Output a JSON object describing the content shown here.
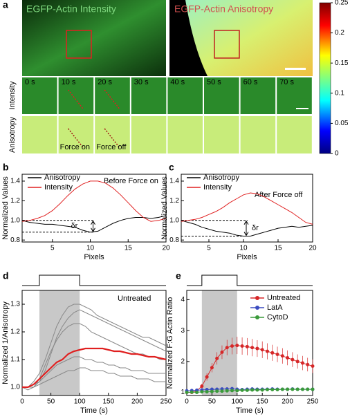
{
  "panels": [
    "a",
    "b",
    "c",
    "d",
    "e"
  ],
  "figure_a": {
    "intensity_title": "EGFP-Actin Intensity",
    "anisotropy_title": "EGFP-Actin Anisotropy",
    "row_labels": [
      "Intensity",
      "Anisotropy"
    ],
    "times": [
      "0 s",
      "10 s",
      "20 s",
      "30 s",
      "40 s",
      "50 s",
      "60 s",
      "70 s"
    ],
    "force_labels": [
      "Force on",
      "Force off"
    ]
  },
  "colorbar": {
    "lim": [
      0,
      0.25
    ],
    "ticks": [
      0.25,
      0.2,
      0.15,
      0.1,
      0.05,
      0
    ]
  },
  "chart_data": [
    {
      "type": "line",
      "xlabel": "Pixels",
      "ylabel": "Normalized Values",
      "annotation": "Before Force on",
      "delta_label": "δr",
      "x": [
        1,
        2,
        3,
        4,
        5,
        6,
        7,
        8,
        9,
        10,
        11,
        12,
        13,
        14,
        15,
        16,
        17,
        18,
        19,
        20
      ],
      "xlim": [
        1,
        20
      ],
      "xticks": [
        5,
        10,
        15,
        20
      ],
      "ylim": [
        0.78,
        1.47
      ],
      "yticks": [
        0.8,
        {
          "value": 1,
          "label": "1.0"
        },
        1.2,
        1.4
      ],
      "series": [
        {
          "name": "Anisotropy",
          "color": "#000000",
          "values": [
            1.0,
            0.98,
            0.97,
            0.96,
            0.96,
            0.95,
            0.94,
            0.93,
            0.9,
            0.88,
            0.89,
            0.93,
            0.97,
            1.0,
            1.02,
            1.03,
            1.03,
            1.02,
            1.03,
            1.05
          ]
        },
        {
          "name": "Intensity",
          "color": "#e02020",
          "values": [
            0.99,
            1.0,
            1.02,
            1.05,
            1.1,
            1.17,
            1.25,
            1.32,
            1.37,
            1.4,
            1.4,
            1.38,
            1.33,
            1.26,
            1.18,
            1.1,
            1.03,
            0.99,
            1.0,
            1.02
          ]
        }
      ]
    },
    {
      "type": "line",
      "xlabel": "Pixels",
      "ylabel": "Normalized Values",
      "annotation": "After Force off",
      "delta_label": "δr",
      "x": [
        1,
        2,
        3,
        4,
        5,
        6,
        7,
        8,
        9,
        10,
        11,
        12,
        13,
        14,
        15,
        16,
        17,
        18,
        19,
        20
      ],
      "xlim": [
        1,
        20
      ],
      "xticks": [
        5,
        10,
        15,
        20
      ],
      "ylim": [
        0.78,
        1.47
      ],
      "yticks": [
        0.8,
        {
          "value": 1,
          "label": "1.0"
        },
        1.2,
        1.4
      ],
      "series": [
        {
          "name": "Anisotropy",
          "color": "#000000",
          "values": [
            1.0,
            0.98,
            0.96,
            0.93,
            0.91,
            0.89,
            0.88,
            0.87,
            0.85,
            0.84,
            0.84,
            0.86,
            0.88,
            0.9,
            0.92,
            0.93,
            0.94,
            0.93,
            0.94,
            0.95
          ]
        },
        {
          "name": "Intensity",
          "color": "#e02020",
          "values": [
            0.99,
            1.0,
            1.01,
            1.03,
            1.06,
            1.09,
            1.13,
            1.18,
            1.22,
            1.26,
            1.28,
            1.27,
            1.24,
            1.2,
            1.16,
            1.12,
            1.08,
            1.03,
            0.98,
            0.96
          ]
        }
      ]
    },
    {
      "type": "line",
      "xlabel": "Time (s)",
      "ylabel": "Normalized 1/Anisotropy",
      "annotation": "Untreated",
      "shaded": [
        30,
        100
      ],
      "x": [
        0,
        10,
        20,
        30,
        40,
        50,
        60,
        70,
        80,
        90,
        100,
        110,
        120,
        130,
        140,
        150,
        160,
        170,
        180,
        190,
        200,
        210,
        220,
        230,
        240,
        250
      ],
      "xlim": [
        0,
        250
      ],
      "xticks": [
        0,
        50,
        100,
        150,
        200,
        250
      ],
      "ylim": [
        0.97,
        1.35
      ],
      "yticks": [
        {
          "value": 1,
          "label": "1.0"
        },
        1.1,
        1.2,
        1.3
      ],
      "series": [
        {
          "color": "#888888",
          "values": [
            1,
            1,
            1.0,
            1.02,
            1.06,
            1.12,
            1.18,
            1.22,
            1.25,
            1.27,
            1.28,
            1.27,
            1.26,
            1.25,
            1.24,
            1.23,
            1.22,
            1.21,
            1.2,
            1.19,
            1.18,
            1.17,
            1.16,
            1.15,
            1.14,
            1.13
          ]
        },
        {
          "color": "#888888",
          "values": [
            1,
            1,
            1.01,
            1.02,
            1.04,
            1.06,
            1.08,
            1.09,
            1.1,
            1.11,
            1.11,
            1.1,
            1.1,
            1.09,
            1.09,
            1.08,
            1.08,
            1.07,
            1.07,
            1.06,
            1.06,
            1.06,
            1.05,
            1.05,
            1.05,
            1.05
          ]
        },
        {
          "color": "#888888",
          "values": [
            1,
            1,
            1.0,
            1.03,
            1.08,
            1.13,
            1.17,
            1.2,
            1.22,
            1.23,
            1.23,
            1.22,
            1.2,
            1.19,
            1.18,
            1.17,
            1.16,
            1.15,
            1.14,
            1.13,
            1.12,
            1.12,
            1.11,
            1.11,
            1.1,
            1.1
          ]
        },
        {
          "color": "#888888",
          "values": [
            1,
            0.99,
            1.0,
            1.01,
            1.02,
            1.03,
            1.04,
            1.05,
            1.06,
            1.06,
            1.07,
            1.07,
            1.06,
            1.06,
            1.06,
            1.05,
            1.05,
            1.04,
            1.04,
            1.04,
            1.03,
            1.03,
            1.03,
            1.02,
            1.02,
            1.02
          ]
        },
        {
          "color": "#888888",
          "values": [
            1,
            1,
            1.02,
            1.05,
            1.1,
            1.16,
            1.22,
            1.26,
            1.29,
            1.3,
            1.3,
            1.29,
            1.28,
            1.26,
            1.25,
            1.24,
            1.23,
            1.22,
            1.21,
            1.2,
            1.19,
            1.18,
            1.18,
            1.17,
            1.16,
            1.15
          ]
        },
        {
          "color": "#e02020",
          "values": [
            1.0,
            1.0,
            1.01,
            1.03,
            1.05,
            1.07,
            1.09,
            1.1,
            1.12,
            1.13,
            1.135,
            1.14,
            1.14,
            1.14,
            1.14,
            1.135,
            1.13,
            1.13,
            1.125,
            1.12,
            1.12,
            1.115,
            1.11,
            1.11,
            1.105,
            1.1
          ]
        }
      ]
    },
    {
      "type": "line",
      "xlabel": "Time (s)",
      "ylabel": "Normalized F:G Actin Ratio",
      "shaded": [
        30,
        100
      ],
      "x": [
        0,
        10,
        20,
        30,
        40,
        50,
        60,
        70,
        80,
        90,
        100,
        110,
        120,
        130,
        140,
        150,
        160,
        170,
        180,
        190,
        200,
        210,
        220,
        230,
        240,
        250
      ],
      "xlim": [
        0,
        250
      ],
      "xticks": [
        0,
        50,
        100,
        150,
        200,
        250
      ],
      "ylim": [
        0.9,
        4.3
      ],
      "yticks": [
        1,
        2,
        3,
        4
      ],
      "series": [
        {
          "name": "Untreated",
          "color": "#d62728",
          "values": [
            1,
            1,
            1.05,
            1.2,
            1.5,
            1.8,
            2.1,
            2.3,
            2.45,
            2.5,
            2.52,
            2.5,
            2.48,
            2.45,
            2.42,
            2.38,
            2.33,
            2.28,
            2.23,
            2.18,
            2.12,
            2.06,
            2.0,
            1.95,
            1.9,
            1.85
          ],
          "errors": [
            0.02,
            0.03,
            0.05,
            0.08,
            0.12,
            0.15,
            0.2,
            0.22,
            0.25,
            0.27,
            0.28,
            0.28,
            0.28,
            0.28,
            0.27,
            0.27,
            0.26,
            0.26,
            0.25,
            0.25,
            0.24,
            0.24,
            0.23,
            0.23,
            0.22,
            0.22
          ]
        },
        {
          "name": "LatA",
          "color": "#3b4cc0",
          "values": [
            1.05,
            1.06,
            1.07,
            1.08,
            1.09,
            1.1,
            1.1,
            1.11,
            1.11,
            1.12,
            1.1,
            1.09,
            1.1,
            1.11,
            1.1,
            1.1,
            1.1,
            1.11,
            1.1,
            1.1,
            1.1,
            1.11,
            1.1,
            1.1,
            1.1,
            1.1
          ]
        },
        {
          "name": "CytoD",
          "color": "#3a9a3a",
          "values": [
            1,
            1.01,
            1.0,
            1.02,
            1.02,
            1.03,
            1.04,
            1.04,
            1.05,
            1.06,
            1.06,
            1.07,
            1.07,
            1.08,
            1.08,
            1.08,
            1.09,
            1.09,
            1.09,
            1.1,
            1.1,
            1.1,
            1.1,
            1.1,
            1.1,
            1.1
          ]
        }
      ]
    }
  ]
}
